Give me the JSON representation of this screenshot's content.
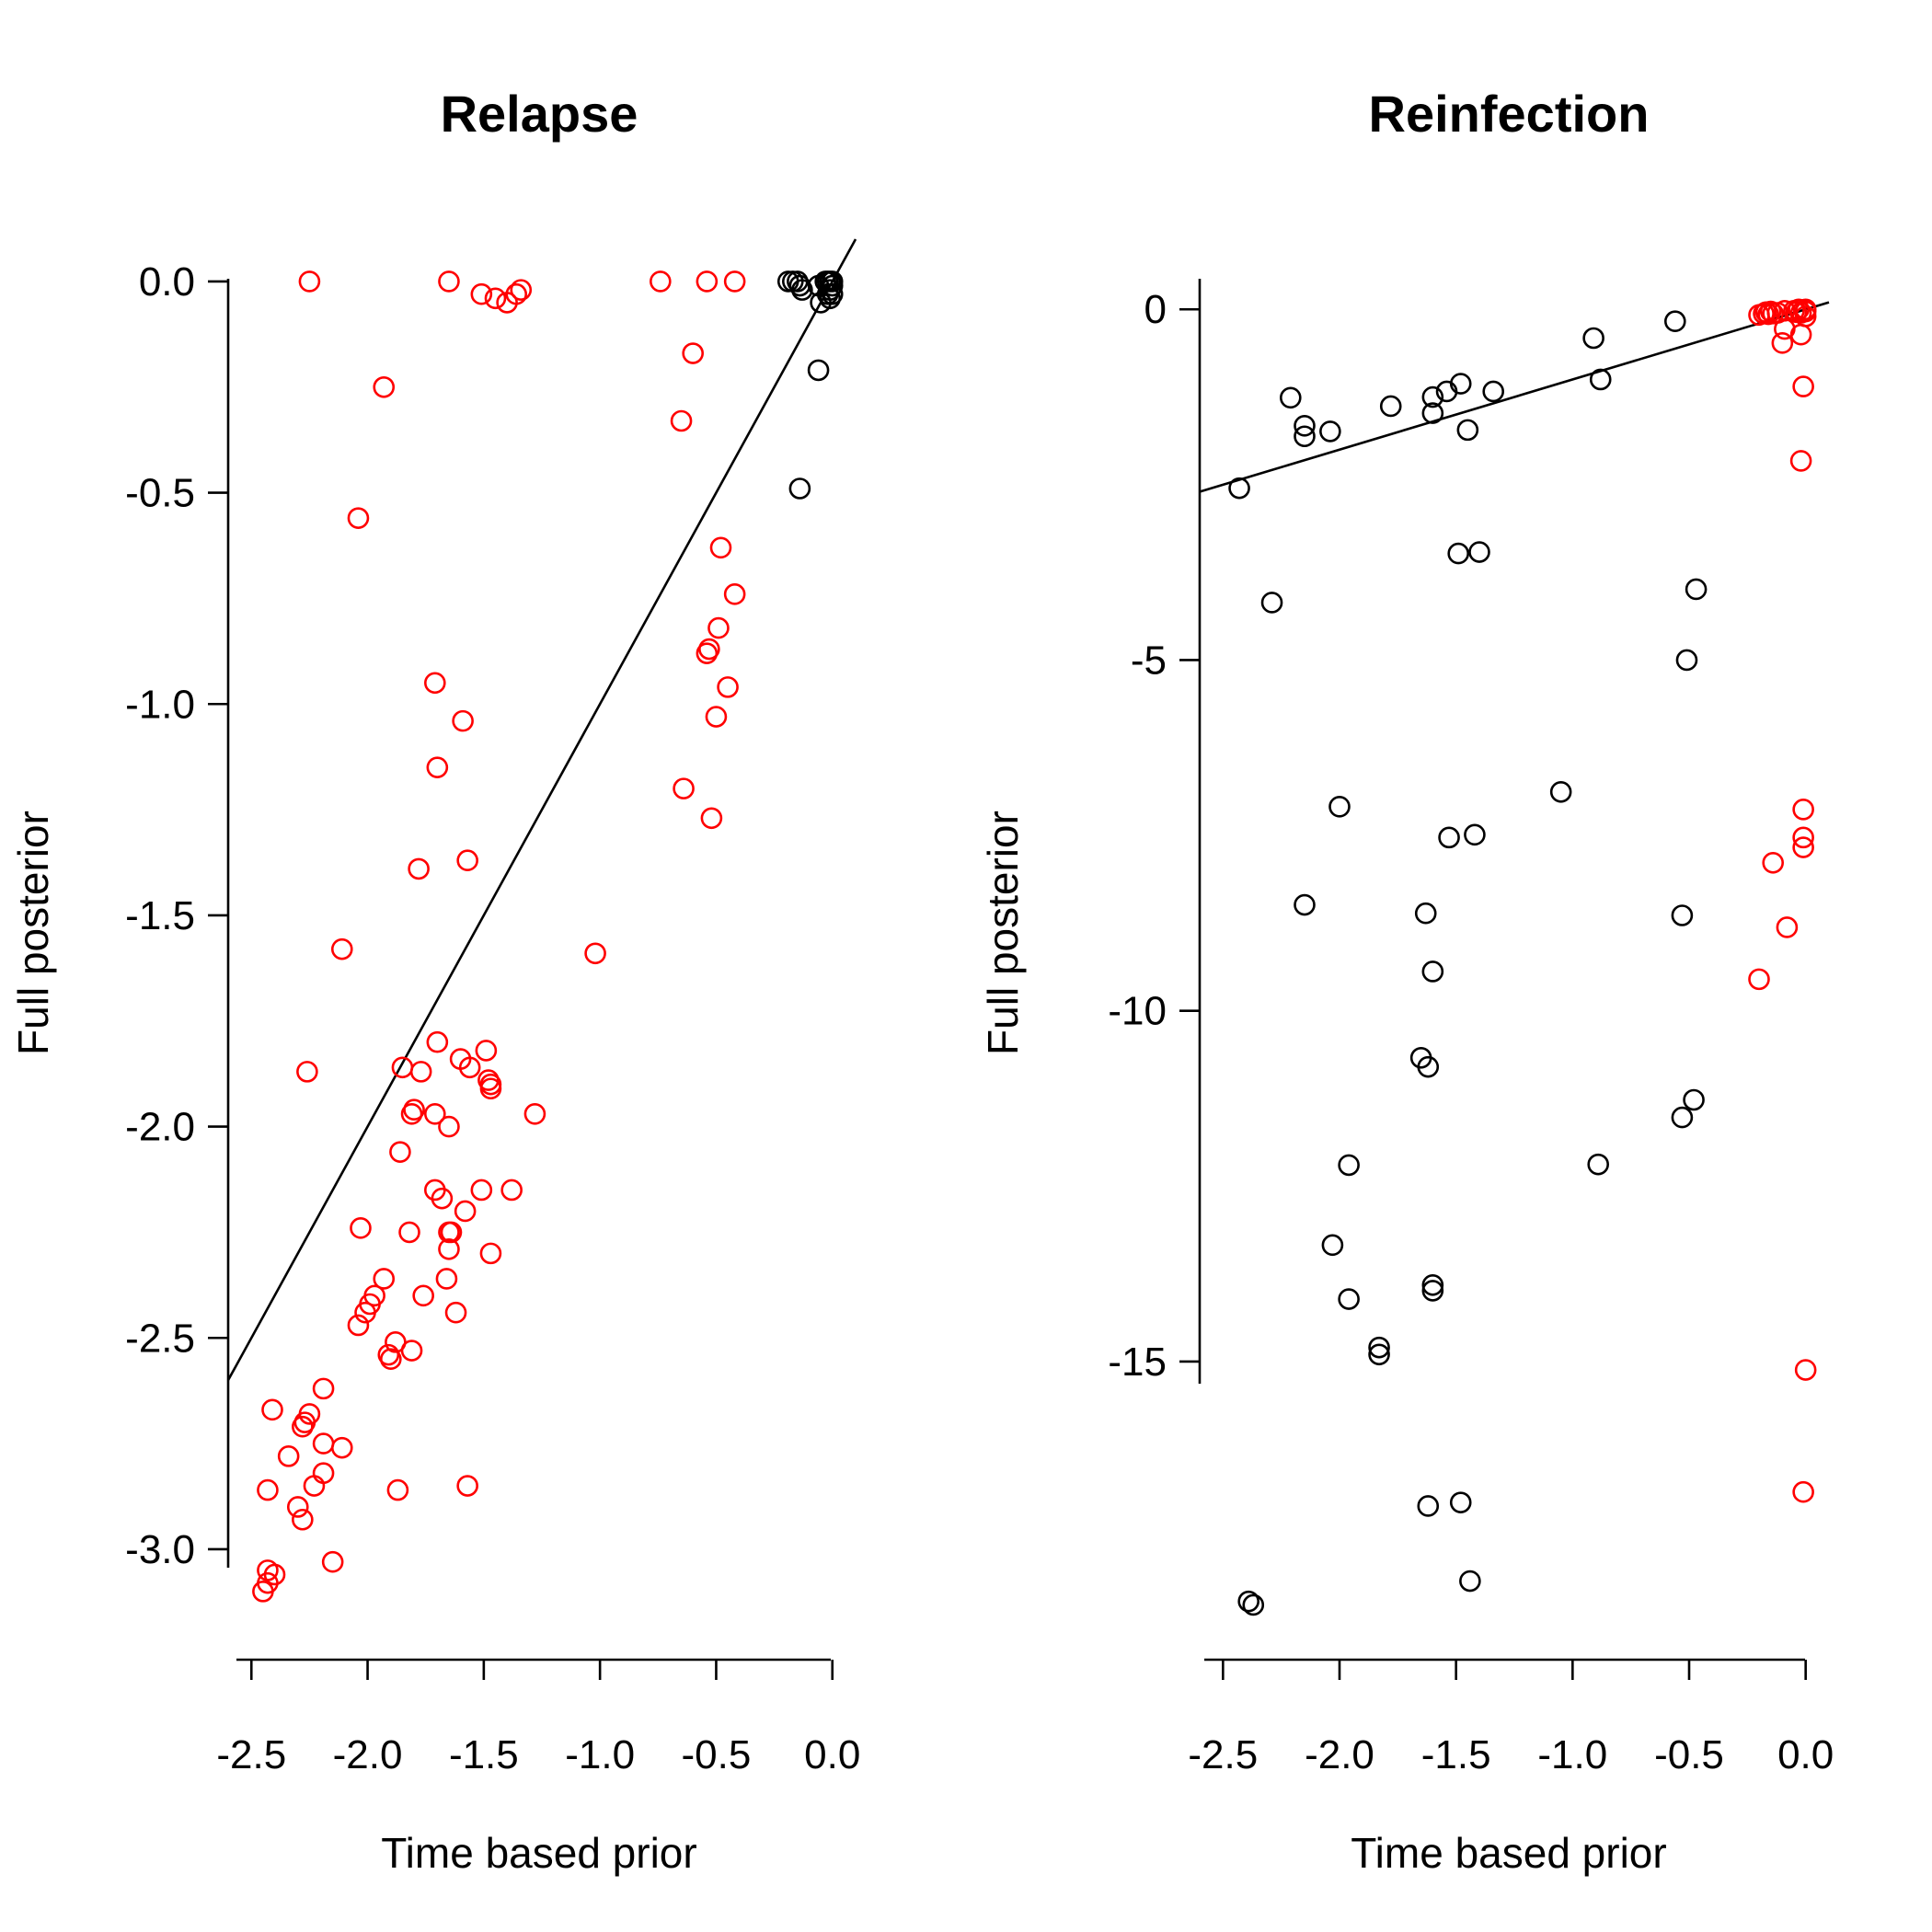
{
  "chart_data": [
    {
      "type": "scatter",
      "title": "Relapse",
      "xlabel": "Time based prior",
      "ylabel": "Full posterior",
      "xlim": [
        -2.6,
        0.1
      ],
      "ylim": [
        -3.17,
        0.1
      ],
      "xticks": [
        -2.5,
        -2.0,
        -1.5,
        -1.0,
        -0.5,
        0.0
      ],
      "xtick_labels": [
        "-2.5",
        "-2.0",
        "-1.5",
        "-1.0",
        "-0.5",
        "0.0"
      ],
      "yticks": [
        0.0,
        -0.5,
        -1.0,
        -1.5,
        -2.0,
        -2.5,
        -3.0
      ],
      "ytick_labels": [
        "0.0",
        "-0.5",
        "-1.0",
        "-1.5",
        "-2.0",
        "-2.5",
        "-3.0"
      ],
      "grid": false,
      "fit_line": {
        "slope": 1.0,
        "intercept": 0.0,
        "color": "#000000"
      },
      "series": [
        {
          "color": "#ff0000",
          "points": [
            [
              -2.25,
              0.0
            ],
            [
              -1.65,
              0.0
            ],
            [
              -1.51,
              -0.03
            ],
            [
              -1.45,
              -0.04
            ],
            [
              -1.4,
              -0.05
            ],
            [
              -1.36,
              -0.03
            ],
            [
              -1.34,
              -0.02
            ],
            [
              -0.74,
              0.0
            ],
            [
              -0.54,
              0.0
            ],
            [
              -0.42,
              0.0
            ],
            [
              -0.6,
              -0.17
            ],
            [
              -0.65,
              -0.33
            ],
            [
              -1.93,
              -0.25
            ],
            [
              -2.04,
              -0.56
            ],
            [
              -0.48,
              -0.63
            ],
            [
              -0.42,
              -0.74
            ],
            [
              -0.49,
              -0.82
            ],
            [
              -0.53,
              -0.87
            ],
            [
              -0.54,
              -0.88
            ],
            [
              -0.45,
              -0.96
            ],
            [
              -0.5,
              -1.03
            ],
            [
              -0.64,
              -1.2
            ],
            [
              -0.52,
              -1.27
            ],
            [
              -1.71,
              -0.95
            ],
            [
              -1.59,
              -1.04
            ],
            [
              -1.7,
              -1.15
            ],
            [
              -1.57,
              -1.37
            ],
            [
              -1.78,
              -1.39
            ],
            [
              -2.11,
              -1.58
            ],
            [
              -1.02,
              -1.59
            ],
            [
              -2.26,
              -1.87
            ],
            [
              -1.7,
              -1.8
            ],
            [
              -1.49,
              -1.82
            ],
            [
              -1.6,
              -1.84
            ],
            [
              -1.56,
              -1.86
            ],
            [
              -1.85,
              -1.86
            ],
            [
              -1.77,
              -1.87
            ],
            [
              -1.47,
              -1.9
            ],
            [
              -1.47,
              -1.91
            ],
            [
              -1.48,
              -1.89
            ],
            [
              -1.81,
              -1.97
            ],
            [
              -1.8,
              -1.96
            ],
            [
              -1.71,
              -1.97
            ],
            [
              -1.28,
              -1.97
            ],
            [
              -1.65,
              -2.0
            ],
            [
              -1.86,
              -2.06
            ],
            [
              -1.71,
              -2.15
            ],
            [
              -1.51,
              -2.15
            ],
            [
              -1.38,
              -2.15
            ],
            [
              -1.68,
              -2.17
            ],
            [
              -1.58,
              -2.2
            ],
            [
              -2.03,
              -2.24
            ],
            [
              -1.82,
              -2.25
            ],
            [
              -1.65,
              -2.25
            ],
            [
              -1.64,
              -2.25
            ],
            [
              -1.65,
              -2.29
            ],
            [
              -1.47,
              -2.3
            ],
            [
              -1.93,
              -2.36
            ],
            [
              -1.66,
              -2.36
            ],
            [
              -1.97,
              -2.4
            ],
            [
              -1.76,
              -2.4
            ],
            [
              -1.99,
              -2.42
            ],
            [
              -2.01,
              -2.44
            ],
            [
              -1.62,
              -2.44
            ],
            [
              -2.04,
              -2.47
            ],
            [
              -1.88,
              -2.51
            ],
            [
              -1.81,
              -2.53
            ],
            [
              -1.91,
              -2.54
            ],
            [
              -1.9,
              -2.55
            ],
            [
              -2.19,
              -2.62
            ],
            [
              -2.41,
              -2.67
            ],
            [
              -2.25,
              -2.68
            ],
            [
              -2.27,
              -2.7
            ],
            [
              -2.28,
              -2.71
            ],
            [
              -2.19,
              -2.75
            ],
            [
              -2.11,
              -2.76
            ],
            [
              -2.34,
              -2.78
            ],
            [
              -2.19,
              -2.82
            ],
            [
              -2.23,
              -2.85
            ],
            [
              -2.43,
              -2.86
            ],
            [
              -1.87,
              -2.86
            ],
            [
              -1.57,
              -2.85
            ],
            [
              -2.3,
              -2.9
            ],
            [
              -2.28,
              -2.93
            ],
            [
              -2.15,
              -3.03
            ],
            [
              -2.43,
              -3.05
            ],
            [
              -2.4,
              -3.06
            ],
            [
              -2.43,
              -3.08
            ],
            [
              -2.45,
              -3.1
            ]
          ]
        },
        {
          "color": "#000000",
          "points": [
            [
              -0.19,
              0.0
            ],
            [
              -0.17,
              0.0
            ],
            [
              -0.15,
              0.0
            ],
            [
              -0.14,
              -0.01
            ],
            [
              -0.13,
              -0.02
            ],
            [
              -0.06,
              -0.01
            ],
            [
              -0.05,
              -0.05
            ],
            [
              -0.03,
              0.0
            ],
            [
              -0.02,
              0.0
            ],
            [
              -0.01,
              0.0
            ],
            [
              0.0,
              0.0
            ],
            [
              0.0,
              -0.01
            ],
            [
              -0.01,
              -0.02
            ],
            [
              0.0,
              -0.03
            ],
            [
              -0.01,
              -0.04
            ],
            [
              -0.02,
              -0.03
            ],
            [
              -0.06,
              -0.21
            ],
            [
              -0.14,
              -0.49
            ]
          ]
        }
      ]
    },
    {
      "type": "scatter",
      "title": "Reinfection",
      "xlabel": "Time based prior",
      "ylabel": "Full posterior",
      "xlim": [
        -2.6,
        0.1
      ],
      "ylim": [
        -18.7,
        1.0
      ],
      "xticks": [
        -2.5,
        -2.0,
        -1.5,
        -1.0,
        -0.5,
        0.0
      ],
      "xtick_labels": [
        "-2.5",
        "-2.0",
        "-1.5",
        "-1.0",
        "-0.5",
        "0.0"
      ],
      "yticks": [
        0,
        -5,
        -10,
        -15
      ],
      "ytick_labels": [
        "0",
        "-5",
        "-10",
        "-15"
      ],
      "grid": false,
      "fit_line": {
        "slope": 1.0,
        "intercept": 0.0,
        "color": "#000000"
      },
      "series": [
        {
          "color": "#000000",
          "points": [
            [
              -0.56,
              -0.17
            ],
            [
              -0.91,
              -0.41
            ],
            [
              -0.88,
              -1.0
            ],
            [
              -1.34,
              -1.17
            ],
            [
              -1.48,
              -1.06
            ],
            [
              -1.54,
              -1.17
            ],
            [
              -1.6,
              -1.25
            ],
            [
              -1.45,
              -1.72
            ],
            [
              -1.6,
              -1.48
            ],
            [
              -1.78,
              -1.38
            ],
            [
              -2.21,
              -1.26
            ],
            [
              -2.15,
              -1.66
            ],
            [
              -2.15,
              -1.81
            ],
            [
              -2.04,
              -1.74
            ],
            [
              -2.43,
              -2.55
            ],
            [
              -1.49,
              -3.48
            ],
            [
              -1.4,
              -3.46
            ],
            [
              -0.47,
              -3.99
            ],
            [
              -2.29,
              -4.18
            ],
            [
              -0.51,
              -5.0
            ],
            [
              -1.05,
              -6.88
            ],
            [
              -2.0,
              -7.09
            ],
            [
              -1.53,
              -7.53
            ],
            [
              -1.42,
              -7.49
            ],
            [
              -2.15,
              -8.49
            ],
            [
              -1.63,
              -8.61
            ],
            [
              -0.53,
              -8.64
            ],
            [
              -1.6,
              -9.44
            ],
            [
              -1.65,
              -10.67
            ],
            [
              -1.62,
              -10.8
            ],
            [
              -0.48,
              -11.27
            ],
            [
              -0.53,
              -11.52
            ],
            [
              -1.96,
              -12.2
            ],
            [
              -0.89,
              -12.19
            ],
            [
              -2.03,
              -13.34
            ],
            [
              -1.6,
              -13.91
            ],
            [
              -1.6,
              -13.99
            ],
            [
              -1.96,
              -14.11
            ],
            [
              -1.83,
              -14.8
            ],
            [
              -1.83,
              -14.9
            ],
            [
              -1.62,
              -17.06
            ],
            [
              -1.48,
              -17.01
            ],
            [
              -2.39,
              -18.42
            ],
            [
              -2.37,
              -18.47
            ],
            [
              -1.44,
              -18.13
            ]
          ]
        },
        {
          "color": "#ff0000",
          "points": [
            [
              -0.2,
              -0.08
            ],
            [
              -0.18,
              -0.06
            ],
            [
              -0.17,
              -0.04
            ],
            [
              -0.16,
              -0.07
            ],
            [
              -0.15,
              -0.03
            ],
            [
              -0.14,
              -0.06
            ],
            [
              -0.12,
              -0.05
            ],
            [
              -0.09,
              -0.02
            ],
            [
              -0.05,
              -0.02
            ],
            [
              -0.04,
              -0.04
            ],
            [
              -0.03,
              0.0
            ],
            [
              -0.02,
              -0.05
            ],
            [
              0.0,
              0.0
            ],
            [
              0.0,
              -0.03
            ],
            [
              0.0,
              -0.1
            ],
            [
              -0.09,
              -0.28
            ],
            [
              -0.1,
              -0.48
            ],
            [
              -0.02,
              -0.36
            ],
            [
              -0.01,
              -1.1
            ],
            [
              -0.02,
              -2.16
            ],
            [
              -0.01,
              -7.13
            ],
            [
              -0.01,
              -7.53
            ],
            [
              -0.01,
              -7.67
            ],
            [
              -0.14,
              -7.89
            ],
            [
              -0.08,
              -8.81
            ],
            [
              -0.2,
              -9.55
            ],
            [
              0.0,
              -15.12
            ],
            [
              -0.01,
              -16.86
            ]
          ]
        }
      ]
    }
  ]
}
